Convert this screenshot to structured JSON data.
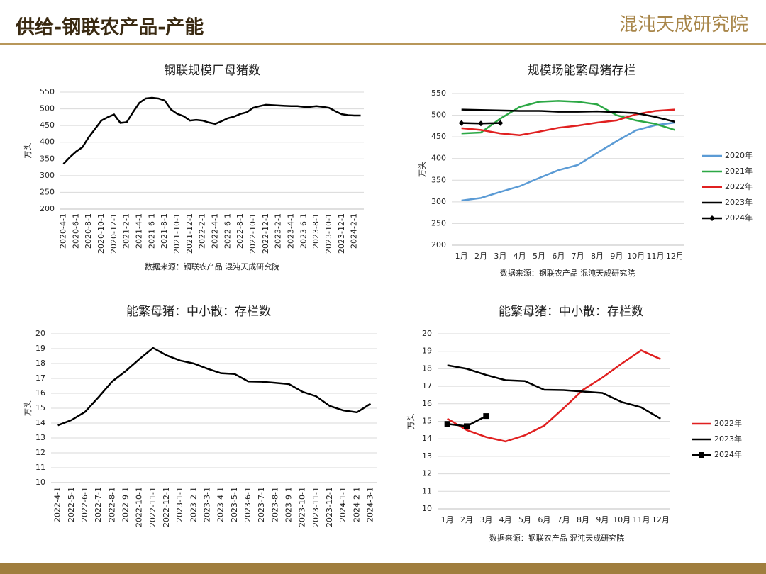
{
  "header": {
    "title": "供给-钢联农产品-产能",
    "logo": "混沌天成研究院"
  },
  "chart_data": [
    {
      "type": "line",
      "title": "钢联规模厂母猪数",
      "y_label": "万头",
      "source": "数据来源：钢联农产品 混沌天成研究院",
      "categories": [
        "2020-4-1",
        null,
        "2020-6-1",
        null,
        "2020-8-1",
        null,
        "2020-10-1",
        null,
        "2020-12-1",
        null,
        "2021-2-1",
        null,
        "2021-4-1",
        null,
        "2021-6-1",
        null,
        "2021-8-1",
        null,
        "2021-10-1",
        null,
        "2021-12-1",
        null,
        "2022-2-1",
        null,
        "2022-4-1",
        null,
        "2022-6-1",
        null,
        "2022-8-1",
        null,
        "2022-10-1",
        null,
        "2022-12-1",
        null,
        "2023-2-1",
        null,
        "2023-4-1",
        null,
        "2023-6-1",
        null,
        "2023-8-1",
        null,
        "2023-10-1",
        null,
        "2023-12-1",
        null,
        "2024-2-1",
        null
      ],
      "values": [
        335,
        355,
        372,
        385,
        415,
        440,
        465,
        475,
        483,
        458,
        460,
        490,
        518,
        531,
        533,
        531,
        525,
        498,
        485,
        478,
        465,
        467,
        465,
        459,
        455,
        463,
        472,
        477,
        485,
        490,
        503,
        508,
        512,
        511,
        510,
        509,
        508,
        508,
        506,
        506,
        508,
        506,
        503,
        493,
        484,
        481,
        480,
        480
      ],
      "color": "#000000",
      "ylim": [
        200,
        550
      ],
      "yticks": [
        200,
        250,
        300,
        350,
        400,
        450,
        500,
        550
      ],
      "grid": true
    },
    {
      "type": "line",
      "title": "规模场能繁母猪存栏",
      "y_label": "万头",
      "source": "数据来源：钢联农产品 混沌天成研究院",
      "categories": [
        "1月",
        "2月",
        "3月",
        "4月",
        "5月",
        "6月",
        "7月",
        "8月",
        "9月",
        "10月",
        "11月",
        "12月"
      ],
      "series": [
        {
          "name": "2020年",
          "color": "#5b9bd5",
          "values": [
            303,
            309,
            323,
            336,
            355,
            373,
            385,
            413,
            440,
            465,
            477,
            483
          ]
        },
        {
          "name": "2021年",
          "color": "#2ca845",
          "values": [
            458,
            460,
            492,
            519,
            531,
            533,
            531,
            525,
            500,
            488,
            480,
            466
          ]
        },
        {
          "name": "2022年",
          "color": "#e02020",
          "values": [
            470,
            466,
            458,
            454,
            462,
            471,
            476,
            483,
            488,
            502,
            510,
            513
          ]
        },
        {
          "name": "2023年",
          "color": "#000000",
          "values": [
            513,
            512,
            511,
            510,
            510,
            508,
            508,
            509,
            507,
            505,
            496,
            485
          ]
        },
        {
          "name": "2024年",
          "color": "#000000",
          "marker": "diamond",
          "values": [
            482,
            481,
            482,
            null,
            null,
            null,
            null,
            null,
            null,
            null,
            null,
            null
          ]
        }
      ],
      "ylim": [
        200,
        550
      ],
      "yticks": [
        200,
        250,
        300,
        350,
        400,
        450,
        500,
        550
      ],
      "grid": true,
      "legend": "right"
    },
    {
      "type": "line",
      "title": "能繁母猪：中小散：存栏数",
      "y_label": "万头",
      "categories": [
        "2022-4-1",
        "2022-5-1",
        "2022-6-1",
        "2022-7-1",
        "2022-8-1",
        "2022-9-1",
        "2022-10-1",
        "2022-11-1",
        "2022-12-1",
        "2023-1-1",
        "2023-2-1",
        "2023-3-1",
        "2023-4-1",
        "2023-5-1",
        "2023-6-1",
        "2023-7-1",
        "2023-8-1",
        "2023-9-1",
        "2023-10-1",
        "2023-11-1",
        "2023-12-1",
        "2024-1-1",
        "2024-2-1",
        "2024-3-1"
      ],
      "values": [
        13.85,
        14.2,
        14.75,
        15.75,
        16.8,
        17.5,
        18.3,
        19.05,
        18.55,
        18.2,
        18.0,
        17.65,
        17.35,
        17.3,
        16.8,
        16.78,
        16.7,
        16.62,
        16.1,
        15.8,
        15.15,
        14.85,
        14.72,
        15.3
      ],
      "color": "#000000",
      "ylim": [
        10,
        20
      ],
      "yticks": [
        10,
        11,
        12,
        13,
        14,
        15,
        16,
        17,
        18,
        19,
        20
      ],
      "grid": true
    },
    {
      "type": "line",
      "title": "能繁母猪：中小散：存栏数",
      "y_label": "万头",
      "source": "数据来源：钢联农产品 混沌天成研究院",
      "categories": [
        "1月",
        "2月",
        "3月",
        "4月",
        "5月",
        "6月",
        "7月",
        "8月",
        "9月",
        "10月",
        "11月",
        "12月"
      ],
      "series": [
        {
          "name": "2022年",
          "color": "#e02020",
          "values": [
            15.15,
            14.5,
            14.1,
            13.85,
            14.2,
            14.75,
            15.75,
            16.8,
            17.5,
            18.3,
            19.05,
            18.55
          ]
        },
        {
          "name": "2023年",
          "color": "#000000",
          "values": [
            18.2,
            18.0,
            17.65,
            17.35,
            17.3,
            16.8,
            16.78,
            16.7,
            16.62,
            16.1,
            15.8,
            15.15
          ]
        },
        {
          "name": "2024年",
          "color": "#000000",
          "marker": "square",
          "values": [
            14.85,
            14.72,
            15.3,
            null,
            null,
            null,
            null,
            null,
            null,
            null,
            null,
            null
          ]
        }
      ],
      "ylim": [
        10,
        20
      ],
      "yticks": [
        10,
        11,
        12,
        13,
        14,
        15,
        16,
        17,
        18,
        19,
        20
      ],
      "grid": true,
      "legend": "right"
    }
  ]
}
